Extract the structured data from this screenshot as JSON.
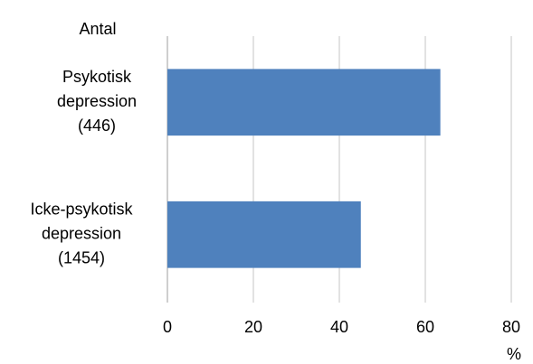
{
  "chart_data": {
    "type": "barh",
    "y_axis_title": "Antal",
    "x_axis_title": "%",
    "categories": [
      [
        "Psykotisk",
        "depression",
        "(446)"
      ],
      [
        "Icke-psykotisk",
        "depression",
        "(1454)"
      ]
    ],
    "values": [
      63.5,
      45
    ],
    "color": "#4f81bd",
    "xlim": [
      0,
      80
    ],
    "xticks": [
      0,
      20,
      40,
      60,
      80
    ],
    "grid": true
  }
}
